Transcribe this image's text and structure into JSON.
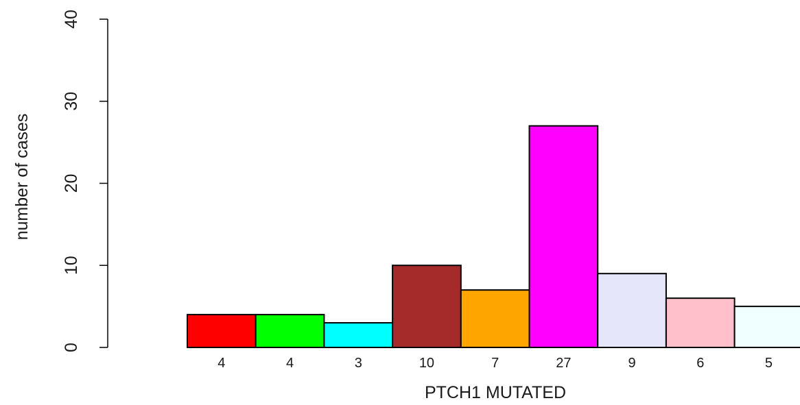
{
  "chart_data": {
    "type": "bar",
    "title": "",
    "xlabel": "PTCH1 MUTATED",
    "ylabel": "number of cases",
    "ylim": [
      0,
      40
    ],
    "yticks": [
      0,
      10,
      20,
      30,
      40
    ],
    "grid": false,
    "legend": "none",
    "categories": [
      "4",
      "4",
      "3",
      "10",
      "7",
      "27",
      "9",
      "6",
      "5"
    ],
    "values": [
      4,
      4,
      3,
      10,
      7,
      27,
      9,
      6,
      5
    ],
    "colors": [
      "#ff0000",
      "#00ff00",
      "#00ffff",
      "#a52a2a",
      "#ffa500",
      "#ff00ff",
      "#e6e6fa",
      "#ffc0cb",
      "#f0ffff"
    ]
  }
}
